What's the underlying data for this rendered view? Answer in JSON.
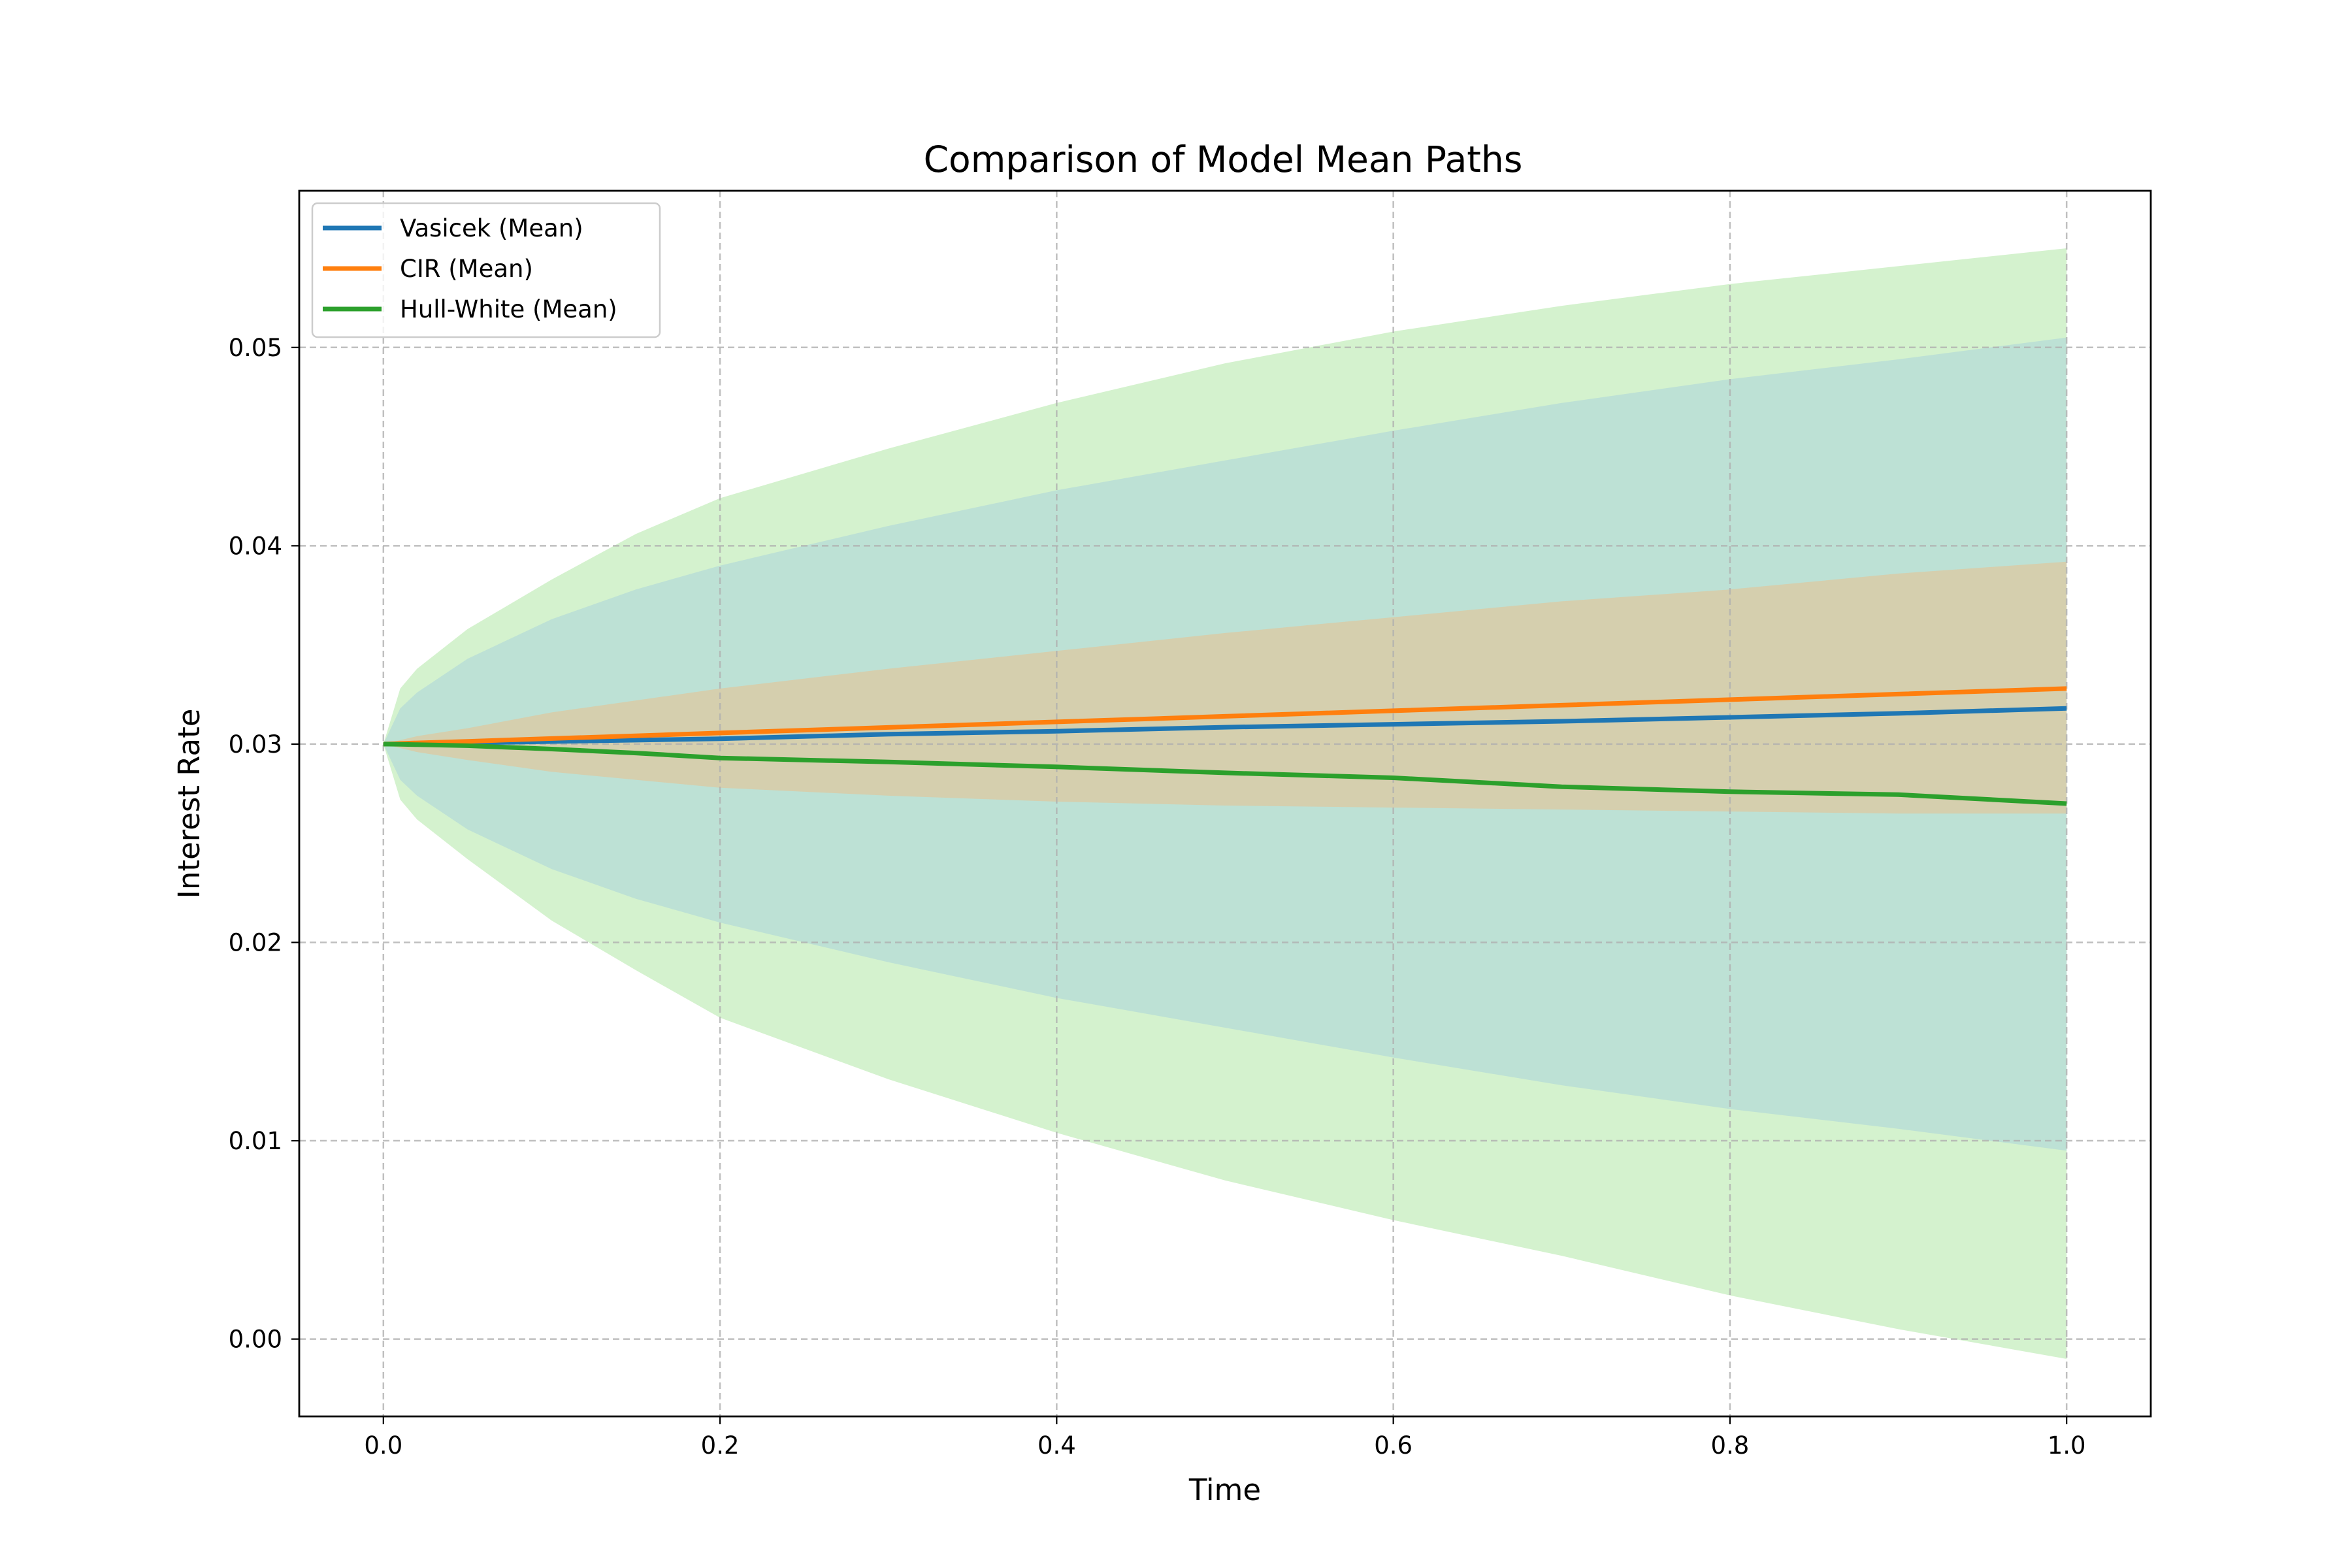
{
  "chart_data": {
    "type": "line",
    "title": "Comparison of Model Mean Paths",
    "xlabel": "Time",
    "ylabel": "Interest Rate",
    "xlim": [
      -0.05,
      1.05
    ],
    "ylim": [
      -0.0039,
      0.0579
    ],
    "x_ticks": [
      0.0,
      0.2,
      0.4,
      0.6,
      0.8,
      1.0
    ],
    "x_tick_labels": [
      "0.0",
      "0.2",
      "0.4",
      "0.6",
      "0.8",
      "1.0"
    ],
    "y_ticks": [
      0.0,
      0.01,
      0.02,
      0.03,
      0.04,
      0.05
    ],
    "y_tick_labels": [
      "0.00",
      "0.01",
      "0.02",
      "0.03",
      "0.04",
      "0.05"
    ],
    "grid": true,
    "legend_position": "top-left",
    "x": [
      0.0,
      0.01,
      0.02,
      0.05,
      0.1,
      0.15,
      0.2,
      0.3,
      0.4,
      0.5,
      0.6,
      0.7,
      0.8,
      0.9,
      1.0
    ],
    "series": [
      {
        "name": "Vasicek (Mean)",
        "color": "#1f77b4",
        "values": [
          0.03,
          0.03001,
          0.03002,
          0.03006,
          0.03013,
          0.0302,
          0.03027,
          0.0305,
          0.03065,
          0.03085,
          0.031,
          0.03115,
          0.03135,
          0.03155,
          0.0318
        ],
        "band_color": "#9ecae1",
        "band_upper": [
          0.03,
          0.0318,
          0.0326,
          0.0343,
          0.0363,
          0.0378,
          0.039,
          0.041,
          0.0428,
          0.0443,
          0.0458,
          0.0472,
          0.0484,
          0.0494,
          0.0505
        ],
        "band_lower": [
          0.03,
          0.0282,
          0.0274,
          0.0257,
          0.0237,
          0.0222,
          0.021,
          0.019,
          0.0172,
          0.0157,
          0.0142,
          0.0128,
          0.0116,
          0.0106,
          0.0095
        ]
      },
      {
        "name": "CIR (Mean)",
        "color": "#ff7f0e",
        "values": [
          0.03,
          0.03003,
          0.03006,
          0.03014,
          0.03028,
          0.03042,
          0.03056,
          0.03084,
          0.03112,
          0.0314,
          0.03168,
          0.03196,
          0.03224,
          0.03252,
          0.0328
        ],
        "band_color": "#f5b77a",
        "band_upper": [
          0.03,
          0.0302,
          0.0304,
          0.0308,
          0.0316,
          0.0322,
          0.0328,
          0.0338,
          0.0347,
          0.0356,
          0.0364,
          0.0372,
          0.0378,
          0.0386,
          0.0392
        ],
        "band_lower": [
          0.03,
          0.0298,
          0.0296,
          0.0292,
          0.0286,
          0.0282,
          0.0278,
          0.0274,
          0.0271,
          0.0269,
          0.0268,
          0.0267,
          0.0266,
          0.0265,
          0.0265
        ]
      },
      {
        "name": "Hull-White (Mean)",
        "color": "#2ca02c",
        "values": [
          0.03,
          0.02999,
          0.02997,
          0.02992,
          0.02975,
          0.02955,
          0.0293,
          0.0291,
          0.02885,
          0.02855,
          0.0283,
          0.02785,
          0.0276,
          0.02745,
          0.027
        ],
        "band_color": "#98df8a",
        "band_upper": [
          0.03,
          0.0328,
          0.0338,
          0.0358,
          0.0383,
          0.0406,
          0.0424,
          0.0449,
          0.0472,
          0.0492,
          0.0508,
          0.0521,
          0.0532,
          0.0541,
          0.055
        ],
        "band_lower": [
          0.03,
          0.0272,
          0.0262,
          0.0242,
          0.0211,
          0.0186,
          0.0162,
          0.0131,
          0.0104,
          0.008,
          0.006,
          0.0042,
          0.0022,
          0.0005,
          -0.001
        ]
      }
    ]
  }
}
